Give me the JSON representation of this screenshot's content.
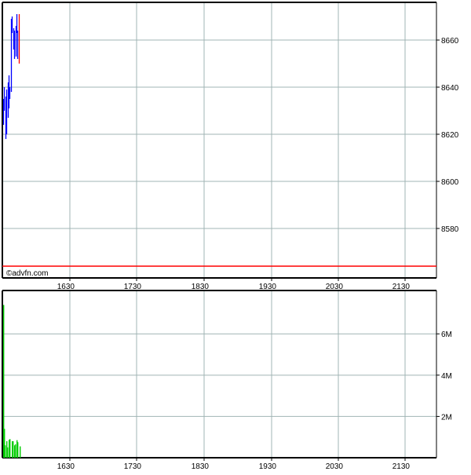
{
  "chart_data": [
    {
      "type": "ohlc",
      "watermark": "©advfn.com",
      "x_tick_labels": [
        "1630",
        "1730",
        "1830",
        "1930",
        "2030",
        "2130"
      ],
      "y_tick_labels": [
        "8580",
        "8600",
        "8620",
        "8640",
        "8660"
      ],
      "ylim": [
        8559,
        8676
      ],
      "reference_line": {
        "value": 8564,
        "color": "#ff0000"
      },
      "up_color": "#0000ff",
      "down_color": "#ff0000",
      "grid": true,
      "bars": [
        {
          "high": 8635,
          "low": 8624,
          "color": "blue"
        },
        {
          "high": 8640,
          "low": 8630,
          "color": "blue"
        },
        {
          "high": 8636,
          "low": 8618,
          "color": "blue"
        },
        {
          "high": 8639,
          "low": 8620,
          "color": "blue"
        },
        {
          "high": 8642,
          "low": 8627,
          "color": "blue"
        },
        {
          "high": 8645,
          "low": 8631,
          "color": "blue"
        },
        {
          "high": 8640,
          "low": 8635,
          "color": "blue"
        },
        {
          "high": 8669,
          "low": 8638,
          "color": "blue"
        },
        {
          "high": 8670,
          "low": 8663,
          "color": "blue"
        },
        {
          "high": 8665,
          "low": 8656,
          "color": "blue"
        },
        {
          "high": 8664,
          "low": 8652,
          "color": "blue"
        },
        {
          "high": 8666,
          "low": 8653,
          "color": "blue"
        },
        {
          "high": 8671,
          "low": 8663,
          "color": "blue"
        },
        {
          "high": 8664,
          "low": 8652,
          "color": "blue"
        },
        {
          "high": 8671,
          "low": 8650,
          "color": "red"
        }
      ]
    },
    {
      "type": "bar",
      "x_tick_labels": [
        "1630",
        "1730",
        "1830",
        "1930",
        "2030",
        "2130"
      ],
      "y_tick_labels": [
        "2M",
        "4M",
        "6M"
      ],
      "ylim": [
        0,
        8.1
      ],
      "unit": "M",
      "color": "#00cc00",
      "grid": true,
      "values": [
        7.4,
        1.4,
        0.6,
        0.8,
        0.5,
        0.87,
        0.9,
        0.8,
        0.8,
        0.6,
        0.65,
        0.85,
        0.75,
        0.55
      ]
    }
  ]
}
